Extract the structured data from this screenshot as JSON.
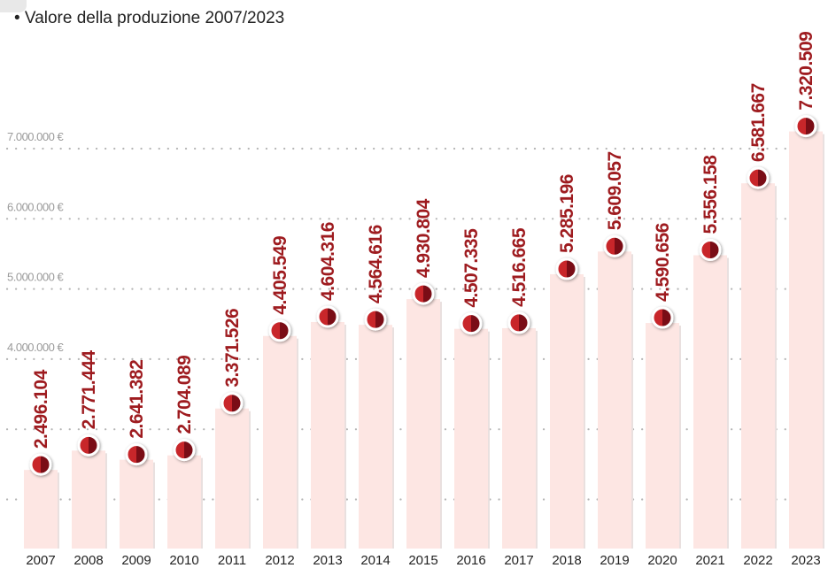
{
  "chart_data": {
    "type": "bar",
    "title": "• Valore della produzione 2007/2023",
    "categories": [
      "2007",
      "2008",
      "2009",
      "2010",
      "2011",
      "2012",
      "2013",
      "2014",
      "2015",
      "2016",
      "2017",
      "2018",
      "2019",
      "2020",
      "2021",
      "2022",
      "2023"
    ],
    "values": [
      2496104,
      2771444,
      2641382,
      2704089,
      3371526,
      4405549,
      4604316,
      4564616,
      4930804,
      4507335,
      4516665,
      5285196,
      5609057,
      4590656,
      5556158,
      6581667,
      7320509
    ],
    "value_labels": [
      "2.496.104",
      "2.771.444",
      "2.641.382",
      "2.704.089",
      "3.371.526",
      "4.405.549",
      "4.604.316",
      "4.564.616",
      "4.930.804",
      "4.507.335",
      "4.516.665",
      "5.285.196",
      "5.609.057",
      "4.590.656",
      "5.556.158",
      "6.581.667",
      "7.320.509"
    ],
    "color": "#fde6e3",
    "marker_color": "#9e1b1f",
    "ylim": [
      1300000,
      9000000
    ],
    "yticks": [
      {
        "value": 2000000,
        "label": null
      },
      {
        "value": 3000000,
        "label": null
      },
      {
        "value": 4000000,
        "label": "4.000.000 €"
      },
      {
        "value": 5000000,
        "label": "5.000.000 €"
      },
      {
        "value": 6000000,
        "label": "6.000.000 €"
      },
      {
        "value": 7000000,
        "label": "7.000.000 €"
      }
    ],
    "grid": true
  }
}
